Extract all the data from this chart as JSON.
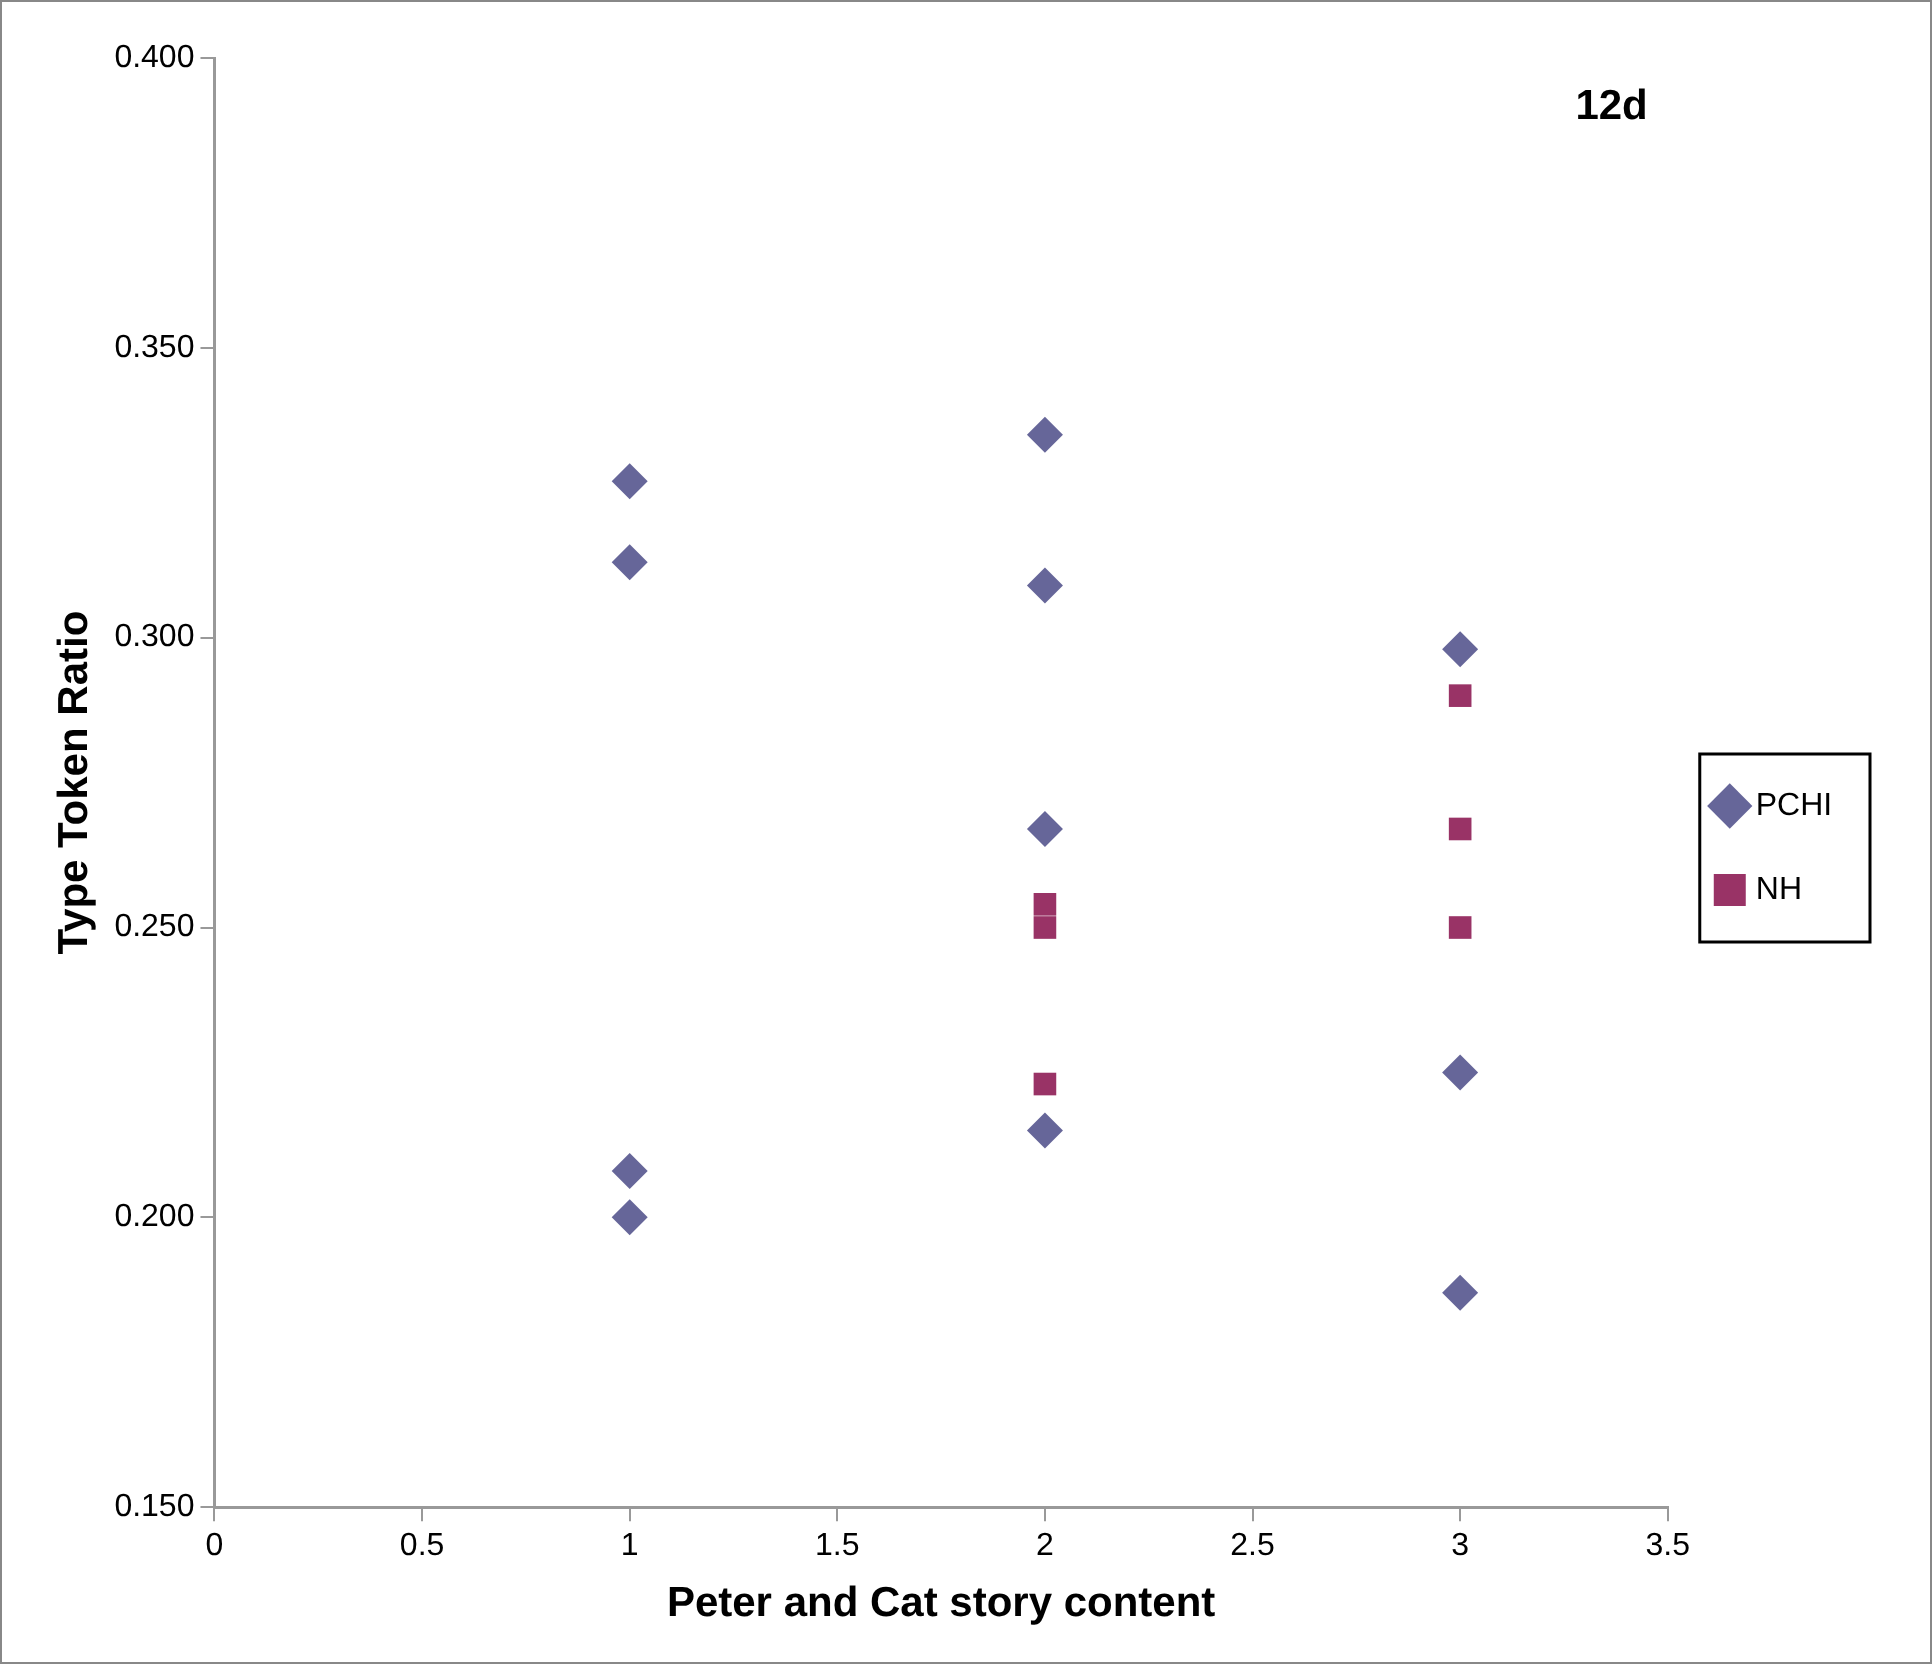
{
  "chart_data": {
    "type": "scatter",
    "xlabel": "Peter and Cat story content",
    "ylabel": "Type Token Ratio",
    "annotations": [
      "12d"
    ],
    "xlim": [
      0,
      3.5
    ],
    "xticks": [
      0,
      0.5,
      1,
      1.5,
      2,
      2.5,
      3,
      3.5
    ],
    "ylim": [
      0.15,
      0.4
    ],
    "yticks": [
      {
        "value": 0.15,
        "label": "0.150"
      },
      {
        "value": 0.2,
        "label": "0.200"
      },
      {
        "value": 0.25,
        "label": "0.250"
      },
      {
        "value": 0.3,
        "label": "0.300"
      },
      {
        "value": 0.35,
        "label": "0.350"
      },
      {
        "value": 0.4,
        "label": "0.400"
      }
    ],
    "grid": false,
    "legend": "right",
    "series": [
      {
        "name": "PCHI",
        "color": "#666699",
        "marker": "diamond",
        "x": [
          1,
          1,
          1,
          1,
          2,
          2,
          2,
          2,
          3,
          3,
          3
        ],
        "values": [
          0.327,
          0.313,
          0.208,
          0.2,
          0.335,
          0.309,
          0.267,
          0.215,
          0.298,
          0.225,
          0.187
        ]
      },
      {
        "name": "NH",
        "color": "#993366",
        "marker": "square",
        "x": [
          2,
          2,
          2,
          3,
          3,
          3
        ],
        "values": [
          0.254,
          0.25,
          0.223,
          0.29,
          0.267,
          0.25
        ]
      }
    ]
  }
}
